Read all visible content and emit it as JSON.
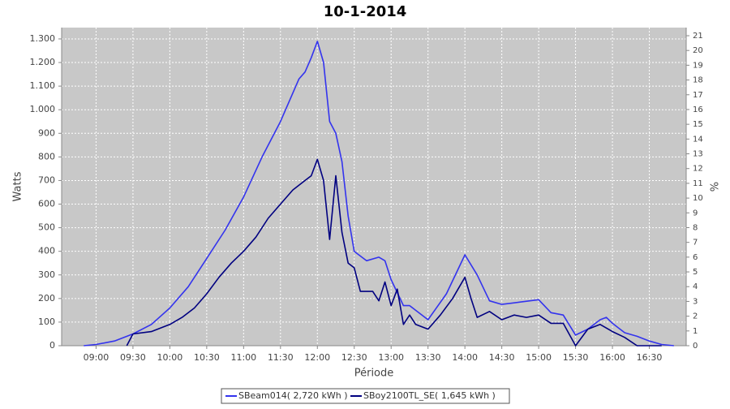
{
  "chart_data": {
    "type": "line",
    "title": "10-1-2014",
    "x_label": "Période",
    "y_label": "Watts",
    "y2_label": "%",
    "xlim": [
      "08:32",
      "17:00"
    ],
    "xticks": [
      "09:00",
      "09:30",
      "10:00",
      "10:30",
      "11:00",
      "11:30",
      "12:00",
      "12:30",
      "13:00",
      "13:30",
      "14:00",
      "14:30",
      "15:00",
      "15:30",
      "16:00",
      "16:30"
    ],
    "ylim": [
      0,
      1348
    ],
    "yticks": [
      0,
      100,
      200,
      300,
      400,
      500,
      600,
      700,
      800,
      900,
      {
        "value": 1000,
        "label": "1.000"
      },
      {
        "value": 1100,
        "label": "1.100"
      },
      {
        "value": 1200,
        "label": "1.200"
      },
      {
        "value": 1300,
        "label": "1.300"
      }
    ],
    "y2lim": [
      0,
      21.55
    ],
    "y2ticks": [
      0,
      1,
      2,
      3,
      4,
      5,
      6,
      7,
      8,
      9,
      10,
      11,
      12,
      13,
      14,
      15,
      16,
      17,
      18,
      19,
      20,
      21
    ],
    "grid": true,
    "legend": "bottom",
    "series": [
      {
        "name": "SBeam014( 2,720 kWh )",
        "color": "#3333ee",
        "x": [
          "08:50",
          "09:00",
          "09:15",
          "09:30",
          "09:45",
          "10:00",
          "10:15",
          "10:30",
          "10:45",
          "11:00",
          "11:15",
          "11:30",
          "11:45",
          "11:50",
          "11:55",
          "12:00",
          "12:05",
          "12:10",
          "12:15",
          "12:20",
          "12:25",
          "12:30",
          "12:40",
          "12:50",
          "12:55",
          "13:00",
          "13:10",
          "13:15",
          "13:20",
          "13:30",
          "13:45",
          "14:00",
          "14:10",
          "14:20",
          "14:30",
          "14:45",
          "15:00",
          "15:10",
          "15:20",
          "15:30",
          "15:40",
          "15:50",
          "15:55",
          "16:00",
          "16:10",
          "16:20",
          "16:30",
          "16:40",
          "16:50"
        ],
        "values": [
          0,
          5,
          20,
          50,
          90,
          160,
          250,
          370,
          490,
          630,
          800,
          950,
          1130,
          1160,
          1220,
          1290,
          1200,
          950,
          900,
          780,
          550,
          400,
          360,
          375,
          360,
          280,
          170,
          170,
          150,
          110,
          220,
          385,
          300,
          190,
          175,
          185,
          195,
          140,
          130,
          45,
          70,
          110,
          120,
          95,
          55,
          40,
          20,
          5,
          0
        ]
      },
      {
        "name": "SBoy2100TL_SE( 1,645 kWh )",
        "color": "#000080",
        "x": [
          "09:25",
          "09:30",
          "09:45",
          "10:00",
          "10:10",
          "10:20",
          "10:30",
          "10:40",
          "10:50",
          "11:00",
          "11:10",
          "11:20",
          "11:30",
          "11:40",
          "11:50",
          "11:55",
          "12:00",
          "12:05",
          "12:10",
          "12:15",
          "12:20",
          "12:25",
          "12:30",
          "12:35",
          "12:45",
          "12:50",
          "12:55",
          "13:00",
          "13:05",
          "13:10",
          "13:15",
          "13:20",
          "13:30",
          "13:40",
          "13:50",
          "14:00",
          "14:05",
          "14:10",
          "14:20",
          "14:30",
          "14:40",
          "14:50",
          "15:00",
          "15:10",
          "15:20",
          "15:30",
          "15:40",
          "15:50",
          "16:00",
          "16:10",
          "16:20",
          "16:40"
        ],
        "values": [
          0,
          50,
          60,
          90,
          120,
          160,
          220,
          290,
          350,
          400,
          460,
          540,
          600,
          660,
          700,
          720,
          790,
          700,
          450,
          720,
          480,
          350,
          330,
          230,
          230,
          190,
          270,
          170,
          240,
          90,
          130,
          90,
          70,
          130,
          200,
          290,
          200,
          120,
          145,
          110,
          130,
          120,
          130,
          95,
          95,
          0,
          70,
          90,
          60,
          35,
          0,
          0
        ]
      }
    ]
  }
}
